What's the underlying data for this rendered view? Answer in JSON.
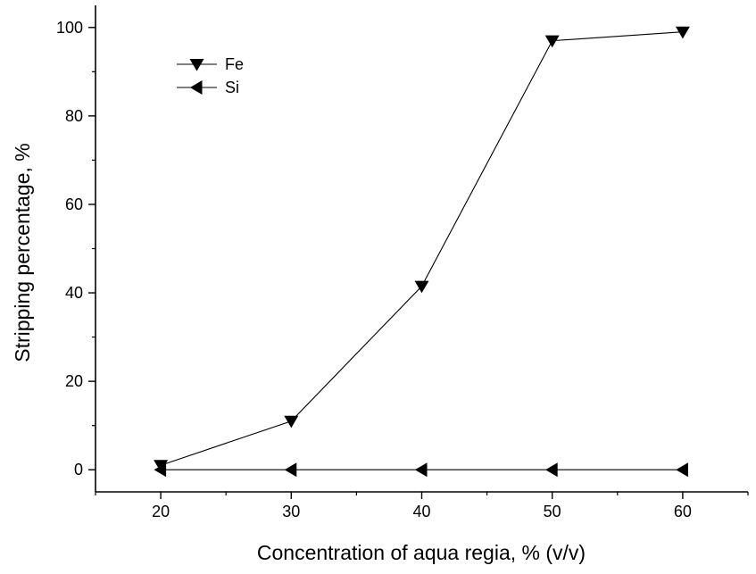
{
  "chart_data": {
    "type": "line",
    "xlabel": "Concentration of aqua regia, % (v/v)",
    "ylabel": "Stripping percentage, %",
    "xlim": [
      15,
      65
    ],
    "ylim": [
      -5,
      105
    ],
    "xticks": [
      20,
      30,
      40,
      50,
      60
    ],
    "yticks": [
      0,
      20,
      40,
      60,
      80,
      100
    ],
    "grid": false,
    "legend_position": "top-left",
    "x": [
      20,
      30,
      40,
      50,
      60
    ],
    "series": [
      {
        "name": "Fe",
        "marker": "triangle-down",
        "color": "#000000",
        "values": [
          1,
          11,
          41.5,
          97,
          99
        ]
      },
      {
        "name": "Si",
        "marker": "triangle-left",
        "color": "#000000",
        "values": [
          0,
          0,
          0,
          0,
          0
        ]
      }
    ]
  }
}
